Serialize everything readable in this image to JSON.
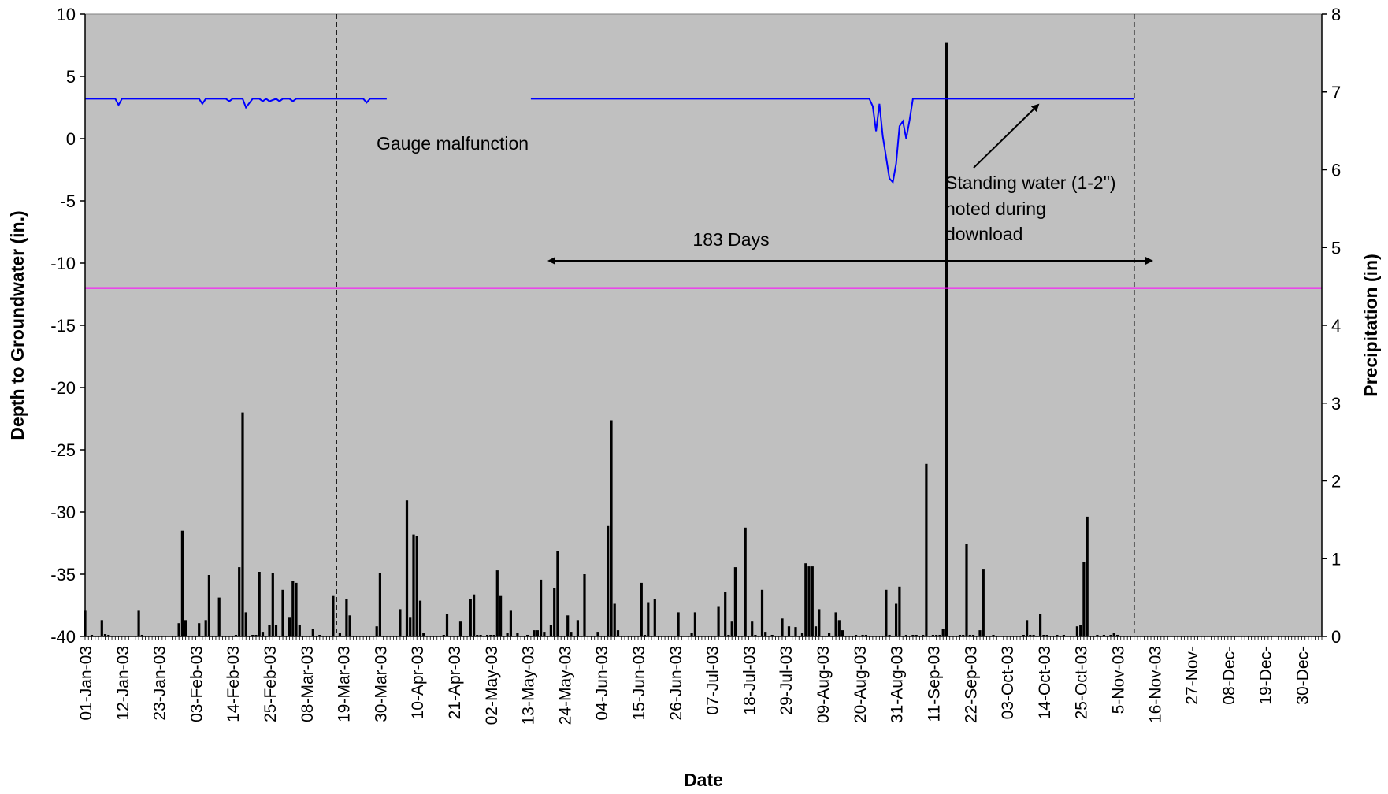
{
  "chart_data": {
    "type": "bar+line",
    "xlabel": "Date",
    "ylabel_left": "Depth to Groundwater (in.)",
    "ylabel_right": "Precipitation (in)",
    "ylim_left": [
      -40,
      10
    ],
    "ylim_right": [
      0,
      8
    ],
    "yticks_left": [
      "10",
      "5",
      "0",
      "-5",
      "-10",
      "-15",
      "-20",
      "-25",
      "-30",
      "-35",
      "-40"
    ],
    "yticks_right": [
      "8",
      "7",
      "6",
      "5",
      "4",
      "3",
      "2",
      "1",
      "0"
    ],
    "xlim_days": [
      0,
      369
    ],
    "xticks": [
      "01-Jan-03",
      "12-Jan-03",
      "23-Jan-03",
      "03-Feb-03",
      "14-Feb-03",
      "25-Feb-03",
      "08-Mar-03",
      "19-Mar-03",
      "30-Mar-03",
      "10-Apr-03",
      "21-Apr-03",
      "02-May-03",
      "13-May-03",
      "24-May-03",
      "04-Jun-03",
      "15-Jun-03",
      "26-Jun-03",
      "07-Jul-03",
      "18-Jul-03",
      "29-Jul-03",
      "09-Aug-03",
      "20-Aug-03",
      "31-Aug-03",
      "11-Sep-03",
      "22-Sep-03",
      "03-Oct-03",
      "14-Oct-03",
      "25-Oct-03",
      "5-Nov-03",
      "16-Nov-03",
      "27-Nov-",
      "08-Dec-",
      "19-Dec-",
      "30-Dec-"
    ],
    "grid": false,
    "reference_line": {
      "depth": -12,
      "color": "#ff00ff"
    },
    "dashed_lines_days": [
      75,
      313
    ],
    "series": [
      {
        "kind": "line",
        "axis": "left",
        "color": "#0000ff",
        "segments": [
          [
            [
              0,
              3.2
            ],
            [
              9,
              3.2
            ],
            [
              10,
              2.7
            ],
            [
              11,
              3.2
            ],
            [
              34,
              3.2
            ],
            [
              35,
              2.8
            ],
            [
              36,
              3.2
            ],
            [
              42,
              3.2
            ],
            [
              43,
              3.0
            ],
            [
              44,
              3.2
            ],
            [
              47,
              3.2
            ],
            [
              48,
              2.5
            ],
            [
              50,
              3.2
            ],
            [
              52,
              3.2
            ],
            [
              53,
              3.0
            ],
            [
              54,
              3.2
            ],
            [
              55,
              3.0
            ],
            [
              57,
              3.2
            ],
            [
              58,
              3.0
            ],
            [
              59,
              3.2
            ],
            [
              61,
              3.2
            ],
            [
              62,
              3.0
            ],
            [
              63,
              3.2
            ],
            [
              83,
              3.2
            ],
            [
              84,
              2.9
            ],
            [
              85,
              3.2
            ],
            [
              90,
              3.2
            ]
          ],
          [
            [
              133,
              3.2
            ],
            [
              234,
              3.2
            ],
            [
              235,
              2.6
            ],
            [
              236,
              0.6
            ],
            [
              237,
              2.8
            ],
            [
              238,
              0.2
            ],
            [
              239,
              -1.5
            ],
            [
              240,
              -3.2
            ],
            [
              241,
              -3.5
            ],
            [
              242,
              -2.0
            ],
            [
              243,
              1.0
            ],
            [
              244,
              1.4
            ],
            [
              245,
              0.0
            ],
            [
              246,
              1.5
            ],
            [
              247,
              3.2
            ],
            [
              313,
              3.2
            ]
          ]
        ]
      },
      {
        "kind": "bar",
        "axis": "right",
        "color": "#000000",
        "points": [
          [
            0,
            0.33
          ],
          [
            2,
            0.02
          ],
          [
            5,
            0.21
          ],
          [
            6,
            0.03
          ],
          [
            7,
            0.02
          ],
          [
            16,
            0.33
          ],
          [
            17,
            0.02
          ],
          [
            28,
            0.17
          ],
          [
            29,
            1.36
          ],
          [
            30,
            0.21
          ],
          [
            34,
            0.17
          ],
          [
            36,
            0.21
          ],
          [
            37,
            0.79
          ],
          [
            40,
            0.5
          ],
          [
            45,
            0.02
          ],
          [
            46,
            0.89
          ],
          [
            47,
            2.88
          ],
          [
            48,
            0.31
          ],
          [
            50,
            0.02
          ],
          [
            51,
            0.02
          ],
          [
            52,
            0.83
          ],
          [
            53,
            0.06
          ],
          [
            55,
            0.15
          ],
          [
            56,
            0.81
          ],
          [
            57,
            0.15
          ],
          [
            59,
            0.6
          ],
          [
            61,
            0.25
          ],
          [
            62,
            0.71
          ],
          [
            63,
            0.69
          ],
          [
            64,
            0.15
          ],
          [
            68,
            0.1
          ],
          [
            70,
            0.02
          ],
          [
            74,
            0.52
          ],
          [
            76,
            0.04
          ],
          [
            78,
            0.48
          ],
          [
            79,
            0.27
          ],
          [
            87,
            0.13
          ],
          [
            88,
            0.81
          ],
          [
            94,
            0.35
          ],
          [
            96,
            1.75
          ],
          [
            97,
            0.25
          ],
          [
            98,
            1.31
          ],
          [
            99,
            1.29
          ],
          [
            100,
            0.46
          ],
          [
            101,
            0.05
          ],
          [
            107,
            0.02
          ],
          [
            108,
            0.29
          ],
          [
            112,
            0.19
          ],
          [
            115,
            0.48
          ],
          [
            116,
            0.54
          ],
          [
            117,
            0.02
          ],
          [
            118,
            0.02
          ],
          [
            120,
            0.02
          ],
          [
            121,
            0.02
          ],
          [
            122,
            0.02
          ],
          [
            123,
            0.85
          ],
          [
            124,
            0.52
          ],
          [
            126,
            0.04
          ],
          [
            127,
            0.33
          ],
          [
            129,
            0.04
          ],
          [
            132,
            0.02
          ],
          [
            134,
            0.08
          ],
          [
            135,
            0.08
          ],
          [
            136,
            0.73
          ],
          [
            137,
            0.06
          ],
          [
            139,
            0.15
          ],
          [
            140,
            0.62
          ],
          [
            141,
            1.1
          ],
          [
            144,
            0.27
          ],
          [
            145,
            0.06
          ],
          [
            147,
            0.21
          ],
          [
            149,
            0.8
          ],
          [
            153,
            0.06
          ],
          [
            156,
            1.42
          ],
          [
            157,
            2.78
          ],
          [
            158,
            0.42
          ],
          [
            159,
            0.08
          ],
          [
            166,
            0.69
          ],
          [
            167,
            0.02
          ],
          [
            168,
            0.44
          ],
          [
            170,
            0.48
          ],
          [
            177,
            0.31
          ],
          [
            181,
            0.04
          ],
          [
            182,
            0.31
          ],
          [
            189,
            0.39
          ],
          [
            191,
            0.57
          ],
          [
            192,
            0.02
          ],
          [
            193,
            0.19
          ],
          [
            194,
            0.89
          ],
          [
            197,
            1.4
          ],
          [
            199,
            0.19
          ],
          [
            200,
            0.02
          ],
          [
            202,
            0.6
          ],
          [
            203,
            0.06
          ],
          [
            205,
            0.02
          ],
          [
            208,
            0.23
          ],
          [
            210,
            0.13
          ],
          [
            212,
            0.12
          ],
          [
            214,
            0.04
          ],
          [
            215,
            0.94
          ],
          [
            216,
            0.9
          ],
          [
            217,
            0.9
          ],
          [
            218,
            0.13
          ],
          [
            219,
            0.35
          ],
          [
            222,
            0.04
          ],
          [
            224,
            0.31
          ],
          [
            225,
            0.21
          ],
          [
            226,
            0.08
          ],
          [
            230,
            0.02
          ],
          [
            232,
            0.02
          ],
          [
            233,
            0.02
          ],
          [
            239,
            0.6
          ],
          [
            240,
            0.02
          ],
          [
            242,
            0.42
          ],
          [
            243,
            0.64
          ],
          [
            245,
            0.02
          ],
          [
            247,
            0.02
          ],
          [
            248,
            0.02
          ],
          [
            250,
            0.02
          ],
          [
            251,
            2.22
          ],
          [
            253,
            0.02
          ],
          [
            254,
            0.02
          ],
          [
            255,
            0.02
          ],
          [
            256,
            0.1
          ],
          [
            257,
            7.64
          ],
          [
            261,
            0.02
          ],
          [
            262,
            0.02
          ],
          [
            263,
            1.19
          ],
          [
            264,
            0.02
          ],
          [
            265,
            0.02
          ],
          [
            267,
            0.08
          ],
          [
            268,
            0.87
          ],
          [
            271,
            0.02
          ],
          [
            280,
            0.02
          ],
          [
            281,
            0.21
          ],
          [
            282,
            0.02
          ],
          [
            283,
            0.02
          ],
          [
            285,
            0.29
          ],
          [
            286,
            0.02
          ],
          [
            287,
            0.02
          ],
          [
            290,
            0.02
          ],
          [
            292,
            0.02
          ],
          [
            296,
            0.13
          ],
          [
            297,
            0.15
          ],
          [
            298,
            0.96
          ],
          [
            299,
            1.54
          ],
          [
            302,
            0.02
          ],
          [
            304,
            0.02
          ],
          [
            306,
            0.02
          ],
          [
            307,
            0.04
          ],
          [
            308,
            0.02
          ]
        ]
      }
    ],
    "annotations": [
      {
        "text": "Gauge malfunction"
      },
      {
        "text": "Standing water (1-2\")",
        "text2": "noted during",
        "text3": "download"
      },
      {
        "text": "183 Days"
      }
    ]
  }
}
